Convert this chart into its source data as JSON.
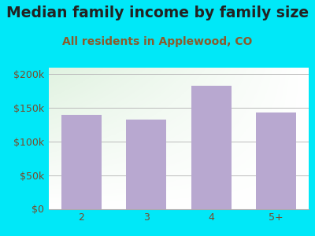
{
  "title": "Median family income by family size",
  "subtitle": "All residents in Applewood, CO",
  "categories": [
    "2",
    "3",
    "4",
    "5+"
  ],
  "values": [
    140000,
    133000,
    183000,
    143000
  ],
  "bar_color": "#b8a8d0",
  "background_outer": "#00e8f8",
  "title_color": "#222222",
  "subtitle_color": "#8b5a2b",
  "tick_color": "#7a4a2a",
  "ylim": [
    0,
    210000
  ],
  "yticks": [
    0,
    50000,
    100000,
    150000,
    200000
  ],
  "ytick_labels": [
    "$0",
    "$50k",
    "$100k",
    "$150k",
    "$200k"
  ],
  "title_fontsize": 13.5,
  "subtitle_fontsize": 10,
  "tick_fontsize": 9
}
